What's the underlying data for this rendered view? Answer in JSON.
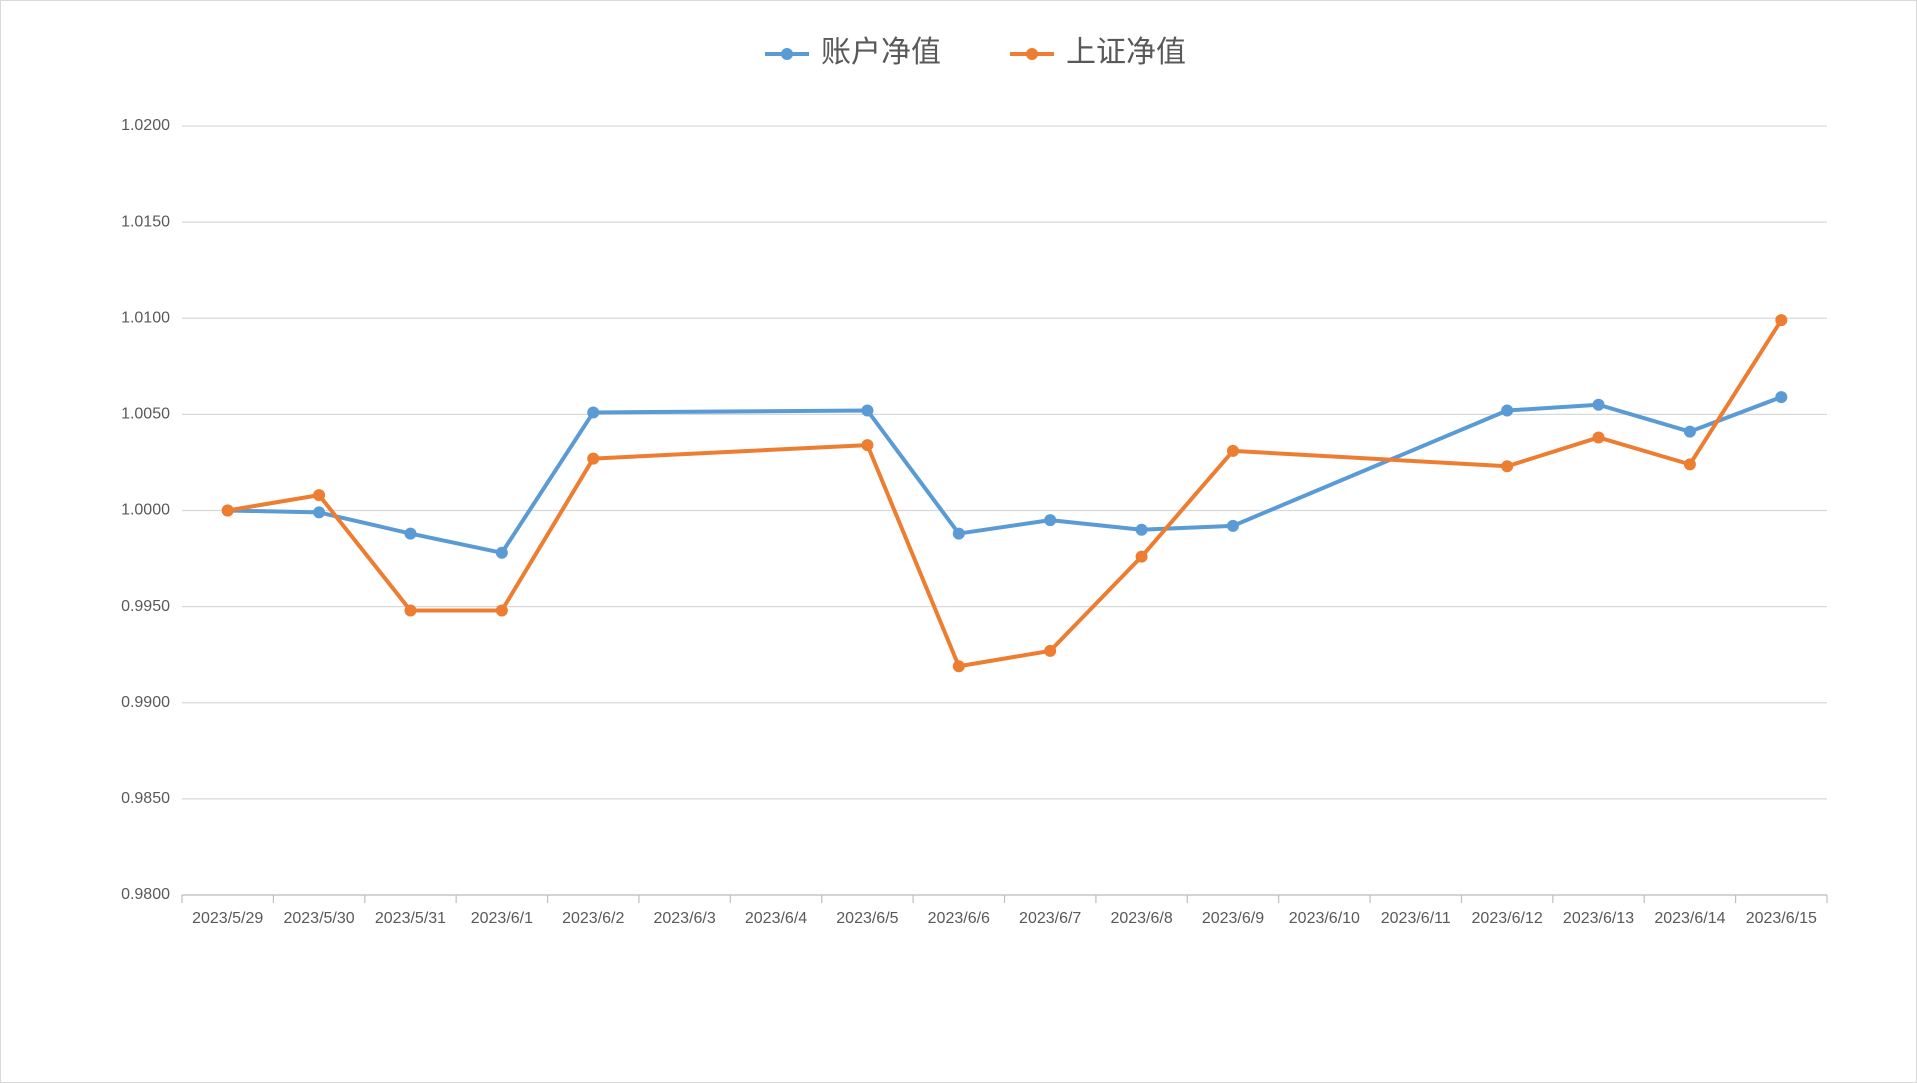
{
  "chart_data": {
    "type": "line",
    "x": [
      "2023/5/29",
      "2023/5/30",
      "2023/5/31",
      "2023/6/1",
      "2023/6/2",
      "2023/6/5",
      "2023/6/6",
      "2023/6/7",
      "2023/6/8",
      "2023/6/9",
      "2023/6/12",
      "2023/6/13",
      "2023/6/14",
      "2023/6/15"
    ],
    "xticks": [
      "2023/5/29",
      "2023/5/30",
      "2023/5/31",
      "2023/6/1",
      "2023/6/2",
      "2023/6/3",
      "2023/6/4",
      "2023/6/5",
      "2023/6/6",
      "2023/6/7",
      "2023/6/8",
      "2023/6/9",
      "2023/6/10",
      "2023/6/11",
      "2023/6/12",
      "2023/6/13",
      "2023/6/14",
      "2023/6/15"
    ],
    "series": [
      {
        "name": "账户净值",
        "color": "#5b9bd5",
        "values": [
          1.0,
          0.9999,
          0.9988,
          0.9978,
          1.0051,
          1.0052,
          0.9988,
          0.9995,
          0.999,
          0.9992,
          1.0052,
          1.0055,
          1.0041,
          1.0059
        ]
      },
      {
        "name": "上证净值",
        "color": "#ed7d31",
        "values": [
          1.0,
          1.0008,
          0.9948,
          0.9948,
          1.0027,
          1.0034,
          0.9919,
          0.9927,
          0.9976,
          1.0031,
          1.0023,
          1.0038,
          1.0024,
          1.0099
        ]
      }
    ],
    "ylim": [
      0.98,
      1.02
    ],
    "yticks": [
      {
        "value": 0.98,
        "label": "0.9800"
      },
      {
        "value": 0.985,
        "label": "0.9850"
      },
      {
        "value": 0.99,
        "label": "0.9900"
      },
      {
        "value": 0.995,
        "label": "0.9950"
      },
      {
        "value": 1.0,
        "label": "1.0000"
      },
      {
        "value": 1.005,
        "label": "1.0050"
      },
      {
        "value": 1.01,
        "label": "1.0100"
      },
      {
        "value": 1.015,
        "label": "1.0150"
      },
      {
        "value": 1.02,
        "label": "1.0200"
      }
    ],
    "grid": true,
    "legend": "top"
  }
}
